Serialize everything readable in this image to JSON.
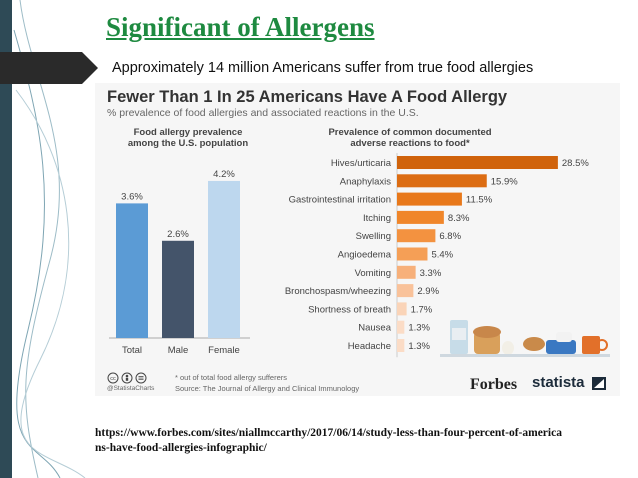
{
  "slide": {
    "title": "Significant of Allergens",
    "subtitle": "Approximately 14 million Americans suffer from true food allergies",
    "url": "https://www.forbes.com/sites/niallmccarthy/2017/06/14/study-less-than-four-percent-of-americans-have-food-allergies-infographic/",
    "colors": {
      "title": "#1e8a40",
      "sidebar": "#2e4a56",
      "arrow": "#2a2a2a"
    }
  },
  "infographic": {
    "title": "Fewer Than 1 In 25 Americans Have A Food Allergy",
    "subtitle": "% prevalence of food allergies and associated reactions in the U.S.",
    "left_title_lines": [
      "Food allergy prevalence",
      "among the U.S. population"
    ],
    "right_title_lines": [
      "Prevalence of common documented",
      "adverse reactions to food*"
    ],
    "footnote": "* out of total food allergy sufferers",
    "source": "Source: The Journal of Allergy and Clinical Immunology",
    "handle": "@StatistaCharts",
    "forbes": "Forbes",
    "statista": "statista",
    "cc_icons": [
      "cc-icon",
      "by-icon",
      "equals-icon"
    ],
    "food_icons": [
      "milk-carton-icon",
      "bread-icon",
      "egg-icon",
      "peanut-icon",
      "fish-icon",
      "mug-icon"
    ]
  },
  "chart_data": [
    {
      "type": "bar",
      "orientation": "vertical",
      "categories": [
        "Total",
        "Male",
        "Female"
      ],
      "values": [
        3.6,
        2.6,
        4.2
      ],
      "labels": [
        "3.6%",
        "2.6%",
        "4.2%"
      ],
      "colors": [
        "#5b9bd5",
        "#44546a",
        "#bdd7ee"
      ],
      "ylim": [
        0,
        4.6
      ]
    },
    {
      "type": "bar",
      "orientation": "horizontal",
      "categories": [
        "Hives/urticaria",
        "Anaphylaxis",
        "Gastrointestinal irritation",
        "Itching",
        "Swelling",
        "Angioedema",
        "Vomiting",
        "Bronchospasm/wheezing",
        "Shortness of breath",
        "Nausea",
        "Headache"
      ],
      "values": [
        28.5,
        15.9,
        11.5,
        8.3,
        6.8,
        5.4,
        3.3,
        2.9,
        1.7,
        1.3,
        1.3
      ],
      "labels": [
        "28.5%",
        "15.9%",
        "11.5%",
        "8.3%",
        "6.8%",
        "5.4%",
        "3.3%",
        "2.9%",
        "1.7%",
        "1.3%",
        "1.3%"
      ],
      "colors": [
        "#d0630c",
        "#dc6c12",
        "#e8781a",
        "#f0862a",
        "#f39240",
        "#f59f56",
        "#f7b07a",
        "#f9c29a",
        "#fad4b8",
        "#fbdcc6",
        "#fbdcc6"
      ],
      "xlim": [
        0,
        31
      ]
    }
  ]
}
